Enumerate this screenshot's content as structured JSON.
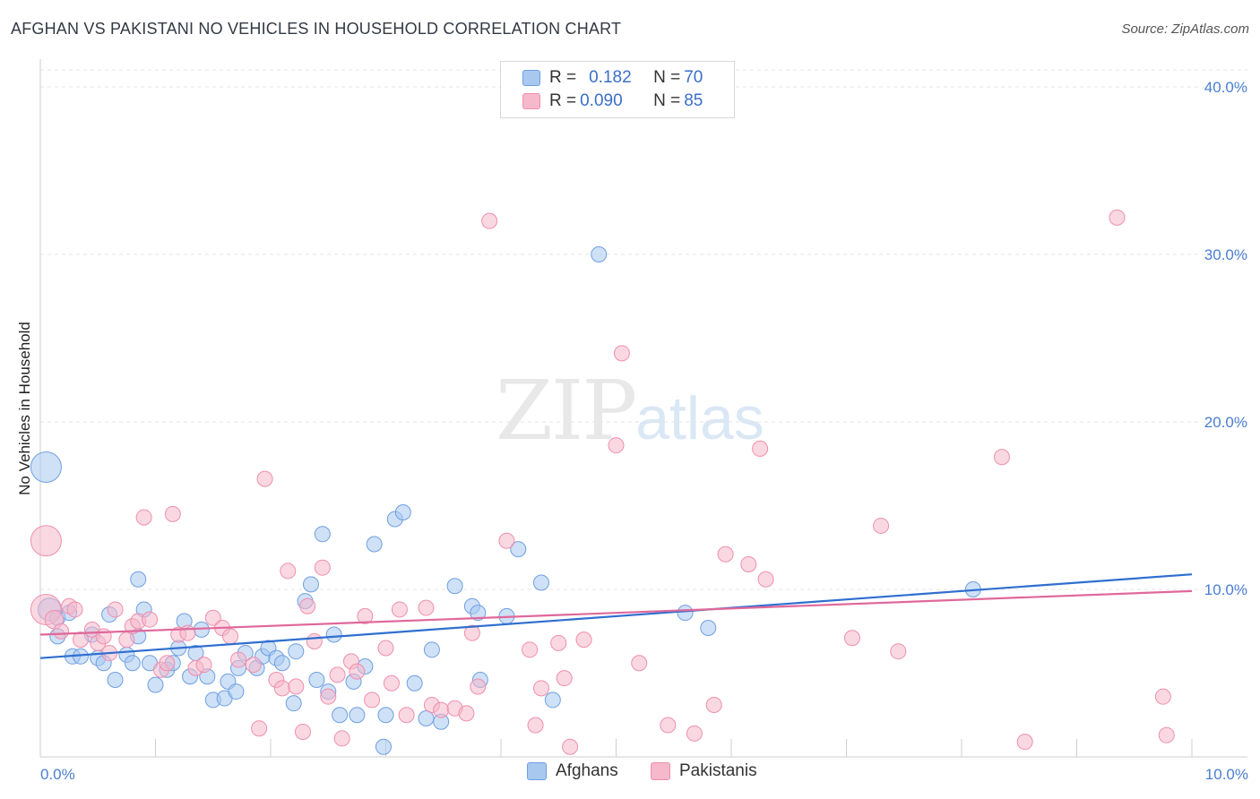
{
  "title": "AFGHAN VS PAKISTANI NO VEHICLES IN HOUSEHOLD CORRELATION CHART",
  "source": "Source: ZipAtlas.com",
  "watermark": {
    "zip": "ZIP",
    "atlas": "atlas"
  },
  "legend": {
    "rows": [
      {
        "r_key": "R = ",
        "r_val": "0.182",
        "n_key": "N = ",
        "n_val": "70",
        "color": "#a8c8f0"
      },
      {
        "r_key": "R = ",
        "r_val": "0.090",
        "n_key": "N = ",
        "n_val": "85",
        "color": "#f6b8cb"
      }
    ]
  },
  "bottom_legend": [
    "Afghans",
    "Pakistanis"
  ],
  "chart_data": {
    "type": "scatter",
    "title": "AFGHAN VS PAKISTANI NO VEHICLES IN HOUSEHOLD CORRELATION CHART",
    "xlabel": "",
    "ylabel": "No Vehicles in Household",
    "xlim": [
      0,
      10
    ],
    "ylim": [
      0,
      40
    ],
    "x_tick_labels": [
      "0.0%",
      "10.0%"
    ],
    "y_ticks": [
      10,
      20,
      30,
      40
    ],
    "y_tick_labels": [
      "10.0%",
      "20.0%",
      "30.0%",
      "40.0%"
    ],
    "grid": true,
    "series": [
      {
        "name": "Afghans",
        "color": "#a8c8f0",
        "stroke": "#6f9fe0",
        "trend": {
          "x": [
            0,
            10
          ],
          "y": [
            5.9,
            10.9
          ],
          "color": "#2f6fd0"
        },
        "points": [
          [
            0.05,
            17.3,
            2
          ],
          [
            0.08,
            8.8,
            1.5
          ],
          [
            0.15,
            8.3,
            1
          ],
          [
            0.25,
            8.6,
            1
          ],
          [
            0.15,
            7.2,
            1
          ],
          [
            0.28,
            6.0,
            1
          ],
          [
            0.35,
            6.0,
            1
          ],
          [
            0.45,
            7.3,
            1
          ],
          [
            0.5,
            5.9,
            1
          ],
          [
            0.55,
            5.6,
            1
          ],
          [
            0.6,
            8.5,
            1
          ],
          [
            0.65,
            4.6,
            1
          ],
          [
            0.75,
            6.1,
            1
          ],
          [
            0.8,
            5.6,
            1
          ],
          [
            0.85,
            7.2,
            1
          ],
          [
            0.9,
            8.8,
            1
          ],
          [
            0.85,
            10.6,
            1
          ],
          [
            0.95,
            5.6,
            1
          ],
          [
            1.0,
            4.3,
            1
          ],
          [
            1.1,
            5.2,
            1
          ],
          [
            1.15,
            5.6,
            1
          ],
          [
            1.2,
            6.5,
            1
          ],
          [
            1.25,
            8.1,
            1
          ],
          [
            1.3,
            4.8,
            1
          ],
          [
            1.35,
            6.2,
            1
          ],
          [
            1.4,
            7.6,
            1
          ],
          [
            1.45,
            4.8,
            1
          ],
          [
            1.5,
            3.4,
            1
          ],
          [
            1.6,
            3.5,
            1
          ],
          [
            1.63,
            4.5,
            1
          ],
          [
            1.7,
            3.9,
            1
          ],
          [
            1.72,
            5.3,
            1
          ],
          [
            1.78,
            6.2,
            1
          ],
          [
            1.88,
            5.3,
            1
          ],
          [
            1.93,
            6.0,
            1
          ],
          [
            1.98,
            6.5,
            1
          ],
          [
            2.05,
            5.9,
            1
          ],
          [
            2.1,
            5.6,
            1
          ],
          [
            2.2,
            3.2,
            1
          ],
          [
            2.22,
            6.3,
            1
          ],
          [
            2.3,
            9.3,
            1
          ],
          [
            2.35,
            10.3,
            1
          ],
          [
            2.4,
            4.6,
            1
          ],
          [
            2.45,
            13.3,
            1
          ],
          [
            2.5,
            3.9,
            1
          ],
          [
            2.55,
            7.3,
            1
          ],
          [
            2.6,
            2.5,
            1
          ],
          [
            2.72,
            4.5,
            1
          ],
          [
            2.75,
            2.5,
            1
          ],
          [
            2.82,
            5.4,
            1
          ],
          [
            2.9,
            12.7,
            1
          ],
          [
            2.98,
            0.6,
            1
          ],
          [
            3.0,
            2.5,
            1
          ],
          [
            3.08,
            14.2,
            1
          ],
          [
            3.15,
            14.6,
            1
          ],
          [
            3.25,
            4.4,
            1
          ],
          [
            3.35,
            2.3,
            1
          ],
          [
            3.4,
            6.4,
            1
          ],
          [
            3.48,
            2.1,
            1
          ],
          [
            3.6,
            10.2,
            1
          ],
          [
            3.75,
            9.0,
            1
          ],
          [
            3.8,
            8.6,
            1
          ],
          [
            3.82,
            4.6,
            1
          ],
          [
            4.05,
            8.4,
            1
          ],
          [
            4.15,
            12.4,
            1
          ],
          [
            4.35,
            10.4,
            1
          ],
          [
            4.45,
            3.4,
            1
          ],
          [
            4.85,
            30.0,
            1
          ],
          [
            5.6,
            8.6,
            1
          ],
          [
            5.8,
            7.7,
            1
          ],
          [
            8.1,
            10.0,
            1
          ]
        ]
      },
      {
        "name": "Pakistanis",
        "color": "#f6b8cb",
        "stroke": "#ee8fae",
        "trend": {
          "x": [
            0,
            10
          ],
          "y": [
            7.3,
            9.9
          ],
          "color": "#e0689a"
        },
        "points": [
          [
            0.05,
            12.9,
            2
          ],
          [
            0.05,
            8.8,
            2
          ],
          [
            0.12,
            8.2,
            1.2
          ],
          [
            0.18,
            7.5,
            1
          ],
          [
            0.25,
            9.0,
            1
          ],
          [
            0.3,
            8.8,
            1
          ],
          [
            0.35,
            7.0,
            1
          ],
          [
            0.45,
            7.6,
            1
          ],
          [
            0.5,
            6.8,
            1
          ],
          [
            0.55,
            7.2,
            1
          ],
          [
            0.6,
            6.2,
            1
          ],
          [
            0.65,
            8.8,
            1
          ],
          [
            0.75,
            7.0,
            1
          ],
          [
            0.8,
            7.8,
            1
          ],
          [
            0.85,
            8.1,
            1
          ],
          [
            0.9,
            14.3,
            1
          ],
          [
            0.95,
            8.2,
            1
          ],
          [
            1.05,
            5.2,
            1
          ],
          [
            1.1,
            5.6,
            1
          ],
          [
            1.15,
            14.5,
            1
          ],
          [
            1.2,
            7.3,
            1
          ],
          [
            1.28,
            7.4,
            1
          ],
          [
            1.35,
            5.3,
            1
          ],
          [
            1.42,
            5.5,
            1
          ],
          [
            1.5,
            8.3,
            1
          ],
          [
            1.58,
            7.7,
            1
          ],
          [
            1.65,
            7.2,
            1
          ],
          [
            1.72,
            5.8,
            1
          ],
          [
            1.85,
            5.5,
            1
          ],
          [
            1.9,
            1.7,
            1
          ],
          [
            1.95,
            16.6,
            1
          ],
          [
            2.05,
            4.6,
            1
          ],
          [
            2.1,
            4.1,
            1
          ],
          [
            2.15,
            11.1,
            1
          ],
          [
            2.22,
            4.2,
            1
          ],
          [
            2.28,
            1.5,
            1
          ],
          [
            2.32,
            9.0,
            1
          ],
          [
            2.38,
            6.9,
            1
          ],
          [
            2.45,
            11.3,
            1
          ],
          [
            2.5,
            3.6,
            1
          ],
          [
            2.58,
            4.9,
            1
          ],
          [
            2.62,
            1.1,
            1
          ],
          [
            2.7,
            5.7,
            1
          ],
          [
            2.75,
            5.1,
            1
          ],
          [
            2.82,
            8.4,
            1
          ],
          [
            2.88,
            3.4,
            1
          ],
          [
            3.0,
            6.5,
            1
          ],
          [
            3.05,
            4.4,
            1
          ],
          [
            3.12,
            8.8,
            1
          ],
          [
            3.18,
            2.5,
            1
          ],
          [
            3.35,
            8.9,
            1
          ],
          [
            3.4,
            3.1,
            1
          ],
          [
            3.48,
            2.8,
            1
          ],
          [
            3.6,
            2.9,
            1
          ],
          [
            3.7,
            2.6,
            1
          ],
          [
            3.75,
            7.4,
            1
          ],
          [
            3.8,
            4.2,
            1
          ],
          [
            3.9,
            32.0,
            1
          ],
          [
            4.05,
            12.9,
            1
          ],
          [
            4.25,
            6.4,
            1
          ],
          [
            4.3,
            1.9,
            1
          ],
          [
            4.35,
            4.1,
            1
          ],
          [
            4.5,
            6.8,
            1
          ],
          [
            4.55,
            4.7,
            1
          ],
          [
            4.6,
            0.6,
            1
          ],
          [
            4.72,
            7.0,
            1
          ],
          [
            5.0,
            18.6,
            1
          ],
          [
            5.05,
            24.1,
            1
          ],
          [
            5.2,
            5.6,
            1
          ],
          [
            5.45,
            1.9,
            1
          ],
          [
            5.68,
            1.4,
            1
          ],
          [
            5.85,
            3.1,
            1
          ],
          [
            5.95,
            12.1,
            1
          ],
          [
            6.15,
            11.5,
            1
          ],
          [
            6.25,
            18.4,
            1
          ],
          [
            6.3,
            10.6,
            1
          ],
          [
            7.05,
            7.1,
            1
          ],
          [
            7.3,
            13.8,
            1
          ],
          [
            7.45,
            6.3,
            1
          ],
          [
            8.35,
            17.9,
            1
          ],
          [
            8.55,
            0.9,
            1
          ],
          [
            9.35,
            32.2,
            1
          ],
          [
            9.75,
            3.6,
            1
          ],
          [
            9.78,
            1.3,
            1
          ]
        ]
      }
    ]
  }
}
